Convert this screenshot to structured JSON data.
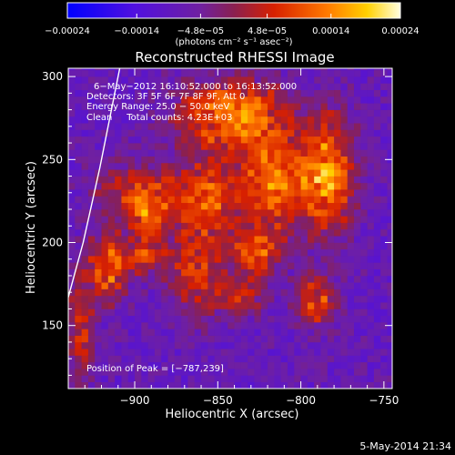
{
  "chart_data": {
    "type": "heatmap",
    "title": "Reconstructed RHESSI Image",
    "xlabel": "Heliocentric X (arcsec)",
    "ylabel": "Heliocentric Y (arcsec)",
    "xlim": [
      -940,
      -745
    ],
    "ylim": [
      112,
      305
    ],
    "x_ticks": [
      -900,
      -850,
      -800,
      -750
    ],
    "x_tick_labels": [
      "−900",
      "−850",
      "−800",
      "−750"
    ],
    "y_ticks": [
      150,
      200,
      250,
      300
    ],
    "y_tick_labels": [
      "150",
      "200",
      "250",
      "300"
    ],
    "colorbar": {
      "range": [
        -0.00024,
        0.00024
      ],
      "ticks": [
        -0.00024,
        -0.00014,
        -4.8e-05,
        4.8e-05,
        0.00014,
        0.00024
      ],
      "tick_labels": [
        "−0.00024",
        "−0.00014",
        "−4.8e−05",
        "4.8e−05",
        "0.00014",
        "0.00024"
      ],
      "unit_label": "(photons cm⁻² s⁻¹ asec⁻²)"
    },
    "annotations": [
      "6−May−2012 16:10:52.000 to 16:13:52.000",
      "Detectors: 3F 5F 6F 7F 8F 9F, Att 0",
      "Energy Range: 25.0 − 50.0 keV",
      "Clean     Total counts: 4.23E+03"
    ],
    "peak_label": "Position of Peak = [−787,239]",
    "peak": [
      -787,
      239
    ],
    "limb_points": [
      [
        -940,
        167
      ],
      [
        -931,
        200
      ],
      [
        -921,
        245
      ],
      [
        -912,
        290
      ],
      [
        -909,
        305
      ]
    ],
    "bright_regions": [
      {
        "x": -843,
        "y": 275,
        "sx": 22,
        "sy": 14,
        "amp": 1.0
      },
      {
        "x": -787,
        "y": 239,
        "sx": 12,
        "sy": 24,
        "amp": 1.0
      },
      {
        "x": -820,
        "y": 235,
        "sx": 13,
        "sy": 20,
        "amp": 0.85
      },
      {
        "x": -857,
        "y": 228,
        "sx": 13,
        "sy": 16,
        "amp": 0.75
      },
      {
        "x": -900,
        "y": 230,
        "sx": 18,
        "sy": 12,
        "amp": 0.55
      },
      {
        "x": -918,
        "y": 183,
        "sx": 8,
        "sy": 14,
        "amp": 0.9
      },
      {
        "x": -893,
        "y": 215,
        "sx": 10,
        "sy": 10,
        "amp": 0.65
      },
      {
        "x": -864,
        "y": 182,
        "sx": 12,
        "sy": 20,
        "amp": 0.65
      },
      {
        "x": -828,
        "y": 193,
        "sx": 10,
        "sy": 12,
        "amp": 0.7
      },
      {
        "x": -793,
        "y": 163,
        "sx": 8,
        "sy": 10,
        "amp": 0.75
      },
      {
        "x": -837,
        "y": 165,
        "sx": 9,
        "sy": 8,
        "amp": 0.5
      },
      {
        "x": -935,
        "y": 145,
        "sx": 6,
        "sy": 22,
        "amp": 0.6
      },
      {
        "x": -895,
        "y": 190,
        "sx": 8,
        "sy": 8,
        "amp": 0.6
      }
    ],
    "background": -0.35
  },
  "footer": {
    "timestamp": "5-May-2014 21:34"
  }
}
